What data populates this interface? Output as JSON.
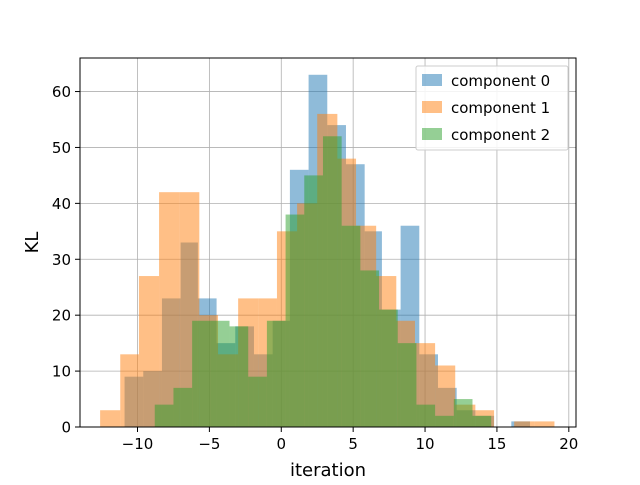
{
  "chart_data": {
    "type": "bar",
    "title": "",
    "xlabel": "iteration",
    "ylabel": "KL",
    "xlim": [
      -14.0,
      20.5
    ],
    "ylim": [
      0,
      66
    ],
    "xticks": [
      -10,
      -5,
      0,
      5,
      10,
      15,
      20
    ],
    "yticks": [
      0,
      10,
      20,
      30,
      40,
      50,
      60
    ],
    "grid": true,
    "legend_position": "top-right",
    "series": [
      {
        "name": "component 0",
        "color": "#1f77b4",
        "opacity": 0.5,
        "bin_edges": [
          -10.9,
          -9.6,
          -8.3,
          -7.0,
          -5.8,
          -4.5,
          -3.2,
          -1.9,
          -0.6,
          0.6,
          1.9,
          3.2,
          4.5,
          5.8,
          7.0,
          8.3,
          9.6,
          10.9,
          12.2,
          13.5,
          14.8,
          16.0,
          17.3
        ],
        "values": [
          9,
          10,
          23,
          33,
          23,
          15,
          18,
          13,
          19,
          46,
          63,
          54,
          47,
          35,
          21,
          36,
          13,
          7,
          3,
          2,
          0,
          1
        ]
      },
      {
        "name": "component 1",
        "color": "#ff7f0e",
        "opacity": 0.5,
        "bin_edges": [
          -12.6,
          -11.2,
          -9.9,
          -8.5,
          -7.1,
          -5.7,
          -4.4,
          -3.0,
          -1.6,
          -0.3,
          1.1,
          2.5,
          3.9,
          5.2,
          6.6,
          8.0,
          9.3,
          10.7,
          12.1,
          13.5,
          14.8,
          16.2,
          17.6,
          19.0
        ],
        "values": [
          3,
          13,
          27,
          42,
          42,
          20,
          13,
          23,
          23,
          35,
          40,
          56,
          48,
          36,
          27,
          19,
          15,
          11,
          4,
          3,
          0,
          1,
          1
        ]
      },
      {
        "name": "component 2",
        "color": "#2ca02c",
        "opacity": 0.5,
        "bin_edges": [
          -8.8,
          -7.5,
          -6.2,
          -4.9,
          -3.6,
          -2.3,
          -1.0,
          0.3,
          1.6,
          2.9,
          4.2,
          5.5,
          6.8,
          8.1,
          9.4,
          10.7,
          12.0,
          13.3,
          14.6
        ],
        "values": [
          4,
          7,
          19,
          19,
          18,
          9,
          19,
          38,
          45,
          52,
          36,
          28,
          21,
          15,
          4,
          2,
          5,
          2
        ]
      }
    ]
  }
}
